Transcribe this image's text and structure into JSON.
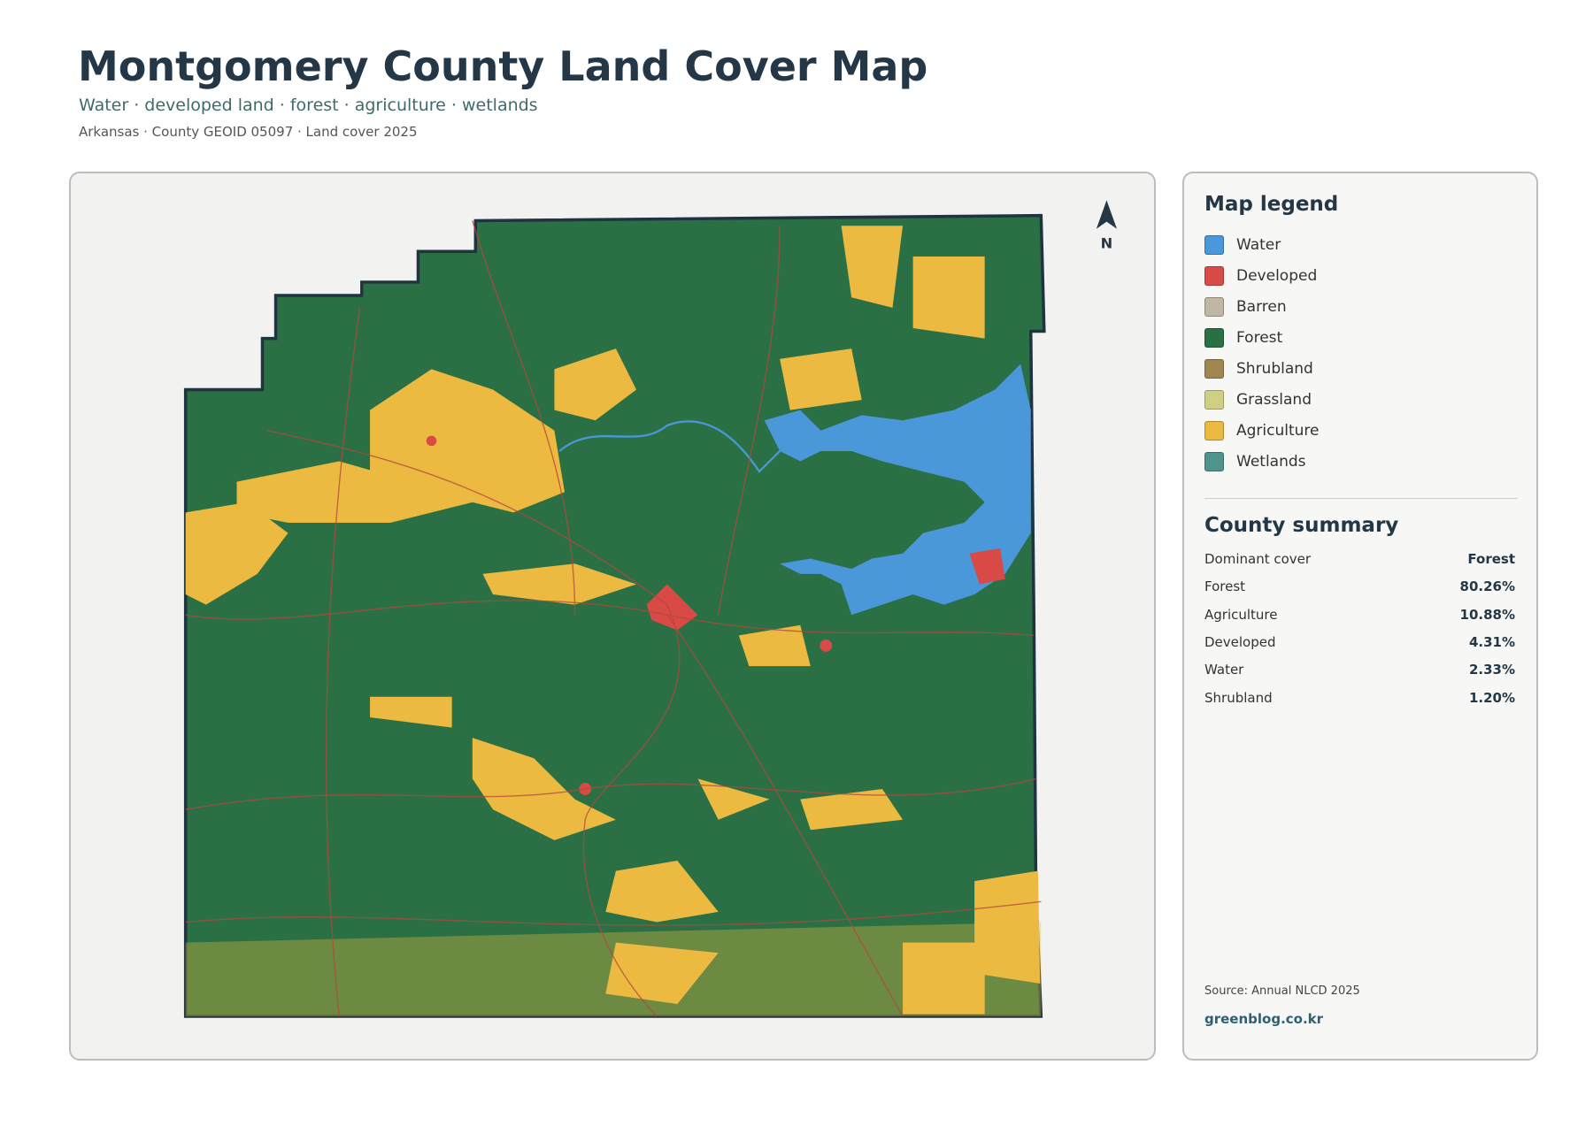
{
  "header": {
    "title": "Montgomery County Land Cover Map",
    "subtitle": "Water · developed land · forest · agriculture · wetlands",
    "meta": "Arkansas · County GEOID 05097 · Land cover 2025"
  },
  "map": {
    "north": "N"
  },
  "legend": {
    "title": "Map legend",
    "items": [
      {
        "label": "Water",
        "color": "#4a97d9"
      },
      {
        "label": "Developed",
        "color": "#d94a46"
      },
      {
        "label": "Barren",
        "color": "#bfb6a3"
      },
      {
        "label": "Forest",
        "color": "#2a7044"
      },
      {
        "label": "Shrubland",
        "color": "#a08650"
      },
      {
        "label": "Grassland",
        "color": "#cfd084"
      },
      {
        "label": "Agriculture",
        "color": "#ecba40"
      },
      {
        "label": "Wetlands",
        "color": "#4f938c"
      }
    ]
  },
  "summary": {
    "title": "County summary",
    "rows": [
      [
        "Dominant cover",
        "Forest"
      ],
      [
        "Forest",
        "80.26%"
      ],
      [
        "Agriculture",
        "10.88%"
      ],
      [
        "Developed",
        "4.31%"
      ],
      [
        "Water",
        "2.33%"
      ],
      [
        "Shrubland",
        "1.20%"
      ]
    ]
  },
  "footer": {
    "source": "Source: Annual NLCD 2025",
    "site": "greenblog.co.kr"
  }
}
